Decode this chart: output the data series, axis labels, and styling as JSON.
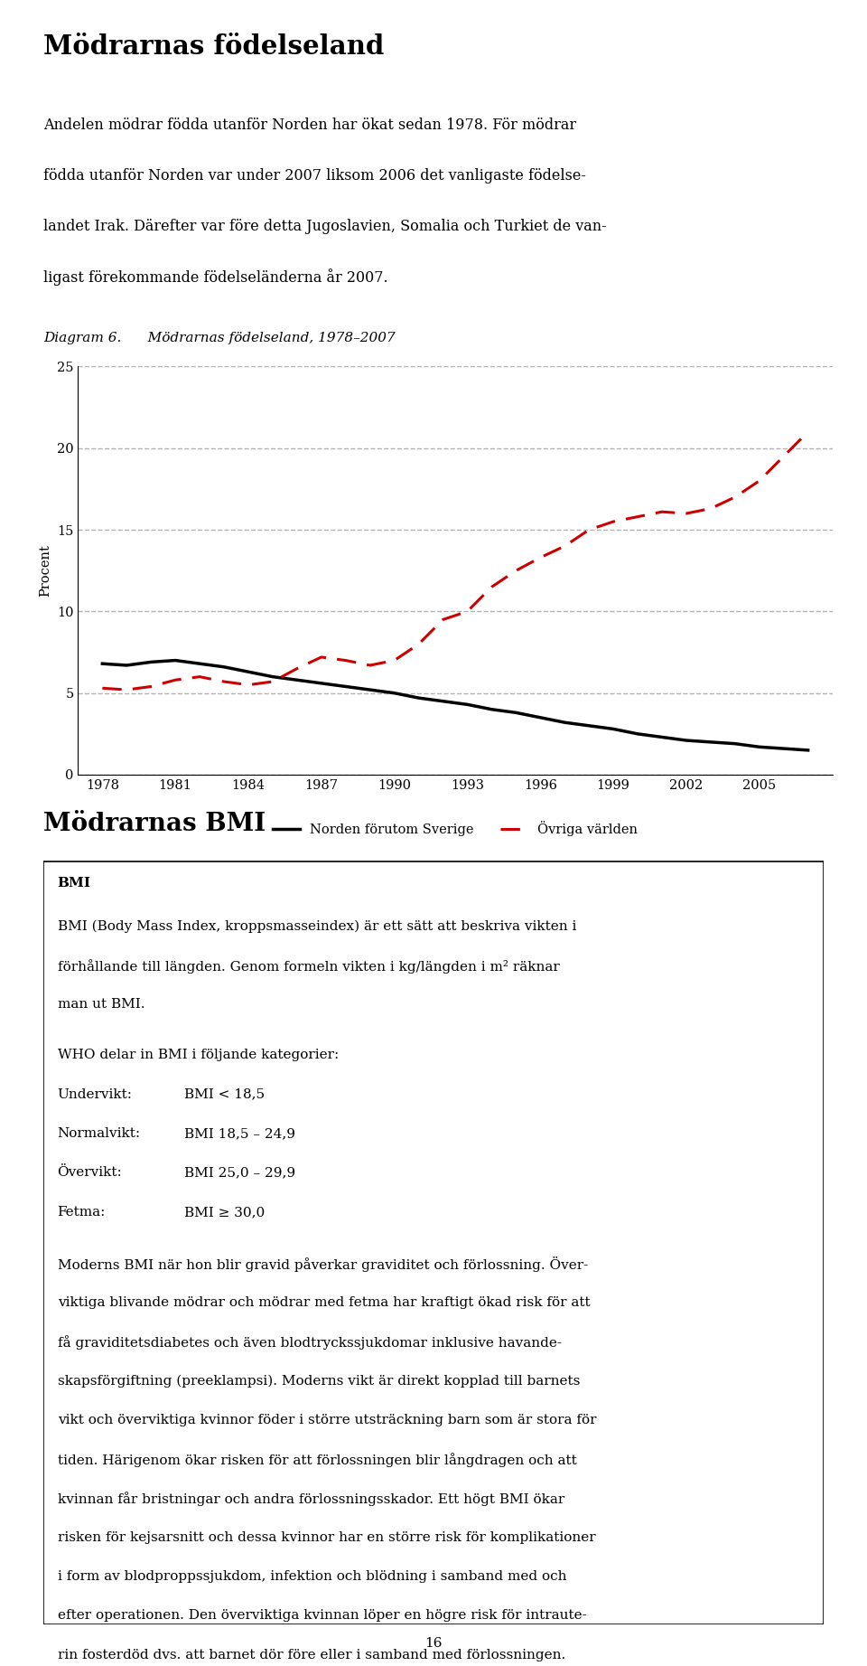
{
  "title_section": "Mödrarnas födelseland",
  "intro_line1": "Andelen mödrar födda utanför Norden har ökat sedan 1978. För mödrar",
  "intro_line2": "födda utanför Norden var under 2007 liksom 2006 det vanligaste födelse-",
  "intro_line3": "landet Irak. Därefter var före detta Jugoslavien, Somalia och Turkiet de van-",
  "intro_line4": "ligast förekommande födelseländerna år 2007.",
  "diagram_label": "Diagram 6.",
  "diagram_title": "Mödrarnas födelseland, 1978–2007",
  "ylabel": "Procent",
  "ylim": [
    0,
    25
  ],
  "yticks": [
    0,
    5,
    10,
    15,
    20,
    25
  ],
  "years": [
    1978,
    1979,
    1980,
    1981,
    1982,
    1983,
    1984,
    1985,
    1986,
    1987,
    1988,
    1989,
    1990,
    1991,
    1992,
    1993,
    1994,
    1995,
    1996,
    1997,
    1998,
    1999,
    2000,
    2001,
    2002,
    2003,
    2004,
    2005,
    2006,
    2007
  ],
  "norden_data": [
    6.8,
    6.7,
    6.9,
    7.0,
    6.8,
    6.6,
    6.3,
    6.0,
    5.8,
    5.6,
    5.4,
    5.2,
    5.0,
    4.7,
    4.5,
    4.3,
    4.0,
    3.8,
    3.5,
    3.2,
    3.0,
    2.8,
    2.5,
    2.3,
    2.1,
    2.0,
    1.9,
    1.7,
    1.6,
    1.5
  ],
  "ovriga_data": [
    5.3,
    5.2,
    5.4,
    5.8,
    6.0,
    5.7,
    5.5,
    5.7,
    6.5,
    7.2,
    7.0,
    6.7,
    7.0,
    8.0,
    9.5,
    10.0,
    11.5,
    12.5,
    13.3,
    14.0,
    15.0,
    15.5,
    15.8,
    16.1,
    16.0,
    16.3,
    17.0,
    18.0,
    19.5,
    21.0
  ],
  "norden_color": "#000000",
  "ovriga_color": "#cc0000",
  "legend_norden": "Norden förutom Sverige",
  "legend_ovriga": "Övriga världen",
  "xticks": [
    1978,
    1981,
    1984,
    1987,
    1990,
    1993,
    1996,
    1999,
    2002,
    2005
  ],
  "grid_color": "#aaaaaa",
  "background_color": "#ffffff",
  "bmi_section_title": "Mödrarnas BMI",
  "bmi_box_title": "BMI",
  "bmi_para1_line1": "BMI (Body Mass Index, kroppsmasseindex) är ett sätt att beskriva vikten i",
  "bmi_para1_line2": "förhållande till längden. Genom formeln vikten i kg/längden i m² räknar",
  "bmi_para1_line3": "man ut BMI.",
  "bmi_who": "WHO delar in BMI i följande kategorier:",
  "bmi_cat1": "Undervikt:",
  "bmi_cat1v": "BMI < 18,5",
  "bmi_cat2": "Normalvikt:",
  "bmi_cat2v": "BMI 18,5 – 24,9",
  "bmi_cat3": "Övervikt:",
  "bmi_cat3v": "BMI 25,0 – 29,9",
  "bmi_cat4": "Fetma:",
  "bmi_cat4v": "BMI ≥ 30,0",
  "bmi_long_text": [
    "Moderns BMI när hon blir gravid påverkar graviditet och förlossning. Över-",
    "viktiga blivande mödrar och mödrar med fetma har kraftigt ökad risk för att",
    "få graviditetsdiabetes och även blodtryckssjukdomar inklusive havande-",
    "skapsförgiftning (preeklampsi). Moderns vikt är direkt kopplad till barnets",
    "vikt och överviktiga kvinnor föder i större utsträckning barn som är stora för",
    "tiden. Härigenom ökar risken för att förlossningen blir långdragen och att",
    "kvinnan får bristningar och andra förlossningsskador. Ett högt BMI ökar",
    "risken för kejsarsnitt och dessa kvinnor har en större risk för komplikationer",
    "i form av blodproppssjukdom, infektion och blödning i samband med och",
    "efter operationen. Den överviktiga kvinnan löper en högre risk för intraute-",
    "rin fosterdöd dvs. att barnet dör före eller i samband med förlossningen."
  ],
  "page_number": "16"
}
